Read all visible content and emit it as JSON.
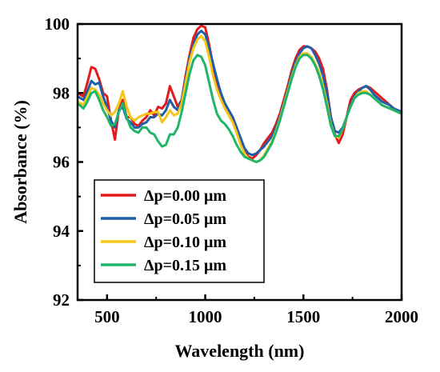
{
  "chart_data": {
    "type": "line",
    "xlabel": "Wavelength (nm)",
    "ylabel": "Absorbance (%)",
    "xlim": [
      350,
      2000
    ],
    "ylim": [
      92,
      100
    ],
    "xticks": [
      500,
      1000,
      1500,
      2000
    ],
    "yticks": [
      92,
      94,
      96,
      98,
      100
    ],
    "grid": false,
    "legend_position": "lower-left",
    "series": [
      {
        "name": "Δp=0.00 μm",
        "color": "#e41a1c",
        "x": [
          350,
          380,
          400,
          420,
          440,
          460,
          480,
          500,
          520,
          540,
          560,
          580,
          600,
          620,
          640,
          660,
          680,
          700,
          720,
          740,
          760,
          780,
          800,
          820,
          840,
          860,
          880,
          900,
          920,
          940,
          960,
          980,
          1000,
          1020,
          1040,
          1060,
          1080,
          1100,
          1120,
          1140,
          1160,
          1180,
          1200,
          1220,
          1240,
          1260,
          1280,
          1300,
          1320,
          1340,
          1360,
          1380,
          1400,
          1420,
          1440,
          1460,
          1480,
          1500,
          1520,
          1540,
          1560,
          1580,
          1600,
          1620,
          1640,
          1660,
          1680,
          1700,
          1720,
          1740,
          1760,
          1780,
          1800,
          1820,
          1840,
          1860,
          1880,
          1900,
          1920,
          1940,
          1960,
          1980,
          2000
        ],
        "values": [
          98.0,
          97.9,
          98.3,
          98.75,
          98.7,
          98.4,
          98.0,
          97.9,
          97.2,
          96.65,
          97.5,
          97.8,
          97.3,
          97.3,
          97.1,
          97.05,
          97.2,
          97.3,
          97.5,
          97.35,
          97.6,
          97.55,
          97.7,
          98.2,
          97.9,
          97.6,
          97.8,
          98.5,
          99.1,
          99.6,
          99.85,
          99.95,
          99.9,
          99.4,
          98.8,
          98.3,
          97.95,
          97.7,
          97.5,
          97.3,
          97.0,
          96.6,
          96.3,
          96.15,
          96.1,
          96.2,
          96.35,
          96.55,
          96.7,
          96.85,
          97.1,
          97.4,
          97.8,
          98.2,
          98.65,
          99.0,
          99.25,
          99.35,
          99.35,
          99.3,
          99.2,
          99.0,
          98.7,
          98.1,
          97.3,
          96.8,
          96.55,
          96.8,
          97.3,
          97.8,
          98.0,
          98.1,
          98.15,
          98.2,
          98.15,
          98.05,
          97.95,
          97.85,
          97.75,
          97.65,
          97.55,
          97.5,
          97.45
        ]
      },
      {
        "name": "Δp=0.05 μm",
        "color": "#1f5ea8",
        "x": [
          350,
          380,
          400,
          420,
          440,
          460,
          480,
          500,
          520,
          540,
          560,
          580,
          600,
          620,
          640,
          660,
          680,
          700,
          720,
          740,
          760,
          780,
          800,
          820,
          840,
          860,
          880,
          900,
          920,
          940,
          960,
          980,
          1000,
          1020,
          1040,
          1060,
          1080,
          1100,
          1120,
          1140,
          1160,
          1180,
          1200,
          1220,
          1240,
          1260,
          1280,
          1300,
          1320,
          1340,
          1360,
          1380,
          1400,
          1420,
          1440,
          1460,
          1480,
          1500,
          1520,
          1540,
          1560,
          1580,
          1600,
          1620,
          1640,
          1660,
          1680,
          1700,
          1720,
          1740,
          1760,
          1780,
          1800,
          1820,
          1840,
          1860,
          1880,
          1900,
          1920,
          1940,
          1960,
          1980,
          2000
        ],
        "values": [
          97.9,
          97.8,
          98.05,
          98.35,
          98.25,
          98.3,
          97.9,
          97.6,
          97.2,
          97.0,
          97.5,
          97.6,
          97.25,
          97.15,
          97.0,
          97.0,
          97.1,
          97.15,
          97.3,
          97.3,
          97.4,
          97.35,
          97.5,
          97.8,
          97.6,
          97.5,
          97.8,
          98.4,
          99.0,
          99.4,
          99.7,
          99.8,
          99.7,
          99.3,
          98.85,
          98.4,
          98.0,
          97.7,
          97.5,
          97.3,
          97.0,
          96.7,
          96.4,
          96.25,
          96.2,
          96.25,
          96.35,
          96.45,
          96.6,
          96.75,
          97.0,
          97.3,
          97.7,
          98.1,
          98.55,
          98.9,
          99.15,
          99.3,
          99.35,
          99.3,
          99.1,
          98.85,
          98.5,
          98.0,
          97.3,
          96.9,
          96.85,
          97.0,
          97.3,
          97.65,
          97.9,
          98.05,
          98.15,
          98.2,
          98.1,
          97.95,
          97.85,
          97.75,
          97.7,
          97.65,
          97.55,
          97.5,
          97.45
        ]
      },
      {
        "name": "Δp=0.10 μm",
        "color": "#f5c518",
        "x": [
          350,
          380,
          400,
          420,
          440,
          460,
          480,
          500,
          520,
          540,
          560,
          580,
          600,
          620,
          640,
          660,
          680,
          700,
          720,
          740,
          760,
          780,
          800,
          820,
          840,
          860,
          880,
          900,
          920,
          940,
          960,
          980,
          1000,
          1020,
          1040,
          1060,
          1080,
          1100,
          1120,
          1140,
          1160,
          1180,
          1200,
          1220,
          1240,
          1260,
          1280,
          1300,
          1320,
          1340,
          1360,
          1380,
          1400,
          1420,
          1440,
          1460,
          1480,
          1500,
          1520,
          1540,
          1560,
          1580,
          1600,
          1620,
          1640,
          1660,
          1680,
          1700,
          1720,
          1740,
          1760,
          1780,
          1800,
          1820,
          1840,
          1860,
          1880,
          1900,
          1920,
          1940,
          1960,
          1980,
          2000
        ],
        "values": [
          97.75,
          97.65,
          97.9,
          98.15,
          98.1,
          97.95,
          97.7,
          97.5,
          97.35,
          97.45,
          97.7,
          98.05,
          97.6,
          97.3,
          97.2,
          97.3,
          97.35,
          97.4,
          97.4,
          97.45,
          97.45,
          97.15,
          97.3,
          97.5,
          97.35,
          97.4,
          97.7,
          98.3,
          98.9,
          99.3,
          99.55,
          99.65,
          99.5,
          99.05,
          98.5,
          98.1,
          97.8,
          97.55,
          97.35,
          97.15,
          96.85,
          96.5,
          96.25,
          96.1,
          96.05,
          96.0,
          96.05,
          96.2,
          96.4,
          96.6,
          96.9,
          97.25,
          97.65,
          98.05,
          98.45,
          98.8,
          99.05,
          99.15,
          99.15,
          99.05,
          98.85,
          98.6,
          98.2,
          97.7,
          97.1,
          96.75,
          96.7,
          96.95,
          97.3,
          97.6,
          97.85,
          98.0,
          98.05,
          98.05,
          97.95,
          97.85,
          97.75,
          97.65,
          97.6,
          97.55,
          97.5,
          97.45,
          97.4
        ]
      },
      {
        "name": "Δp=0.15 μm",
        "color": "#1fb56b",
        "x": [
          350,
          380,
          400,
          420,
          440,
          460,
          480,
          500,
          520,
          540,
          560,
          580,
          600,
          620,
          640,
          660,
          680,
          700,
          720,
          740,
          760,
          780,
          800,
          820,
          840,
          860,
          880,
          900,
          920,
          940,
          960,
          980,
          1000,
          1020,
          1040,
          1060,
          1080,
          1100,
          1120,
          1140,
          1160,
          1180,
          1200,
          1220,
          1240,
          1260,
          1280,
          1300,
          1320,
          1340,
          1360,
          1380,
          1400,
          1420,
          1440,
          1460,
          1480,
          1500,
          1520,
          1540,
          1560,
          1580,
          1600,
          1620,
          1640,
          1660,
          1680,
          1700,
          1720,
          1740,
          1760,
          1780,
          1800,
          1820,
          1840,
          1860,
          1880,
          1900,
          1920,
          1940,
          1960,
          1980,
          2000
        ],
        "values": [
          97.7,
          97.55,
          97.75,
          98.0,
          98.05,
          97.8,
          97.5,
          97.3,
          97.05,
          97.1,
          97.45,
          97.7,
          97.3,
          97.0,
          96.9,
          96.85,
          97.0,
          97.0,
          96.85,
          96.8,
          96.6,
          96.45,
          96.5,
          96.8,
          96.8,
          97.0,
          97.45,
          98.0,
          98.55,
          98.95,
          99.1,
          99.05,
          98.8,
          98.3,
          97.8,
          97.4,
          97.2,
          97.1,
          96.95,
          96.75,
          96.5,
          96.3,
          96.15,
          96.1,
          96.05,
          96.0,
          96.05,
          96.15,
          96.35,
          96.55,
          96.85,
          97.2,
          97.6,
          98.0,
          98.4,
          98.75,
          99.0,
          99.1,
          99.1,
          99.0,
          98.8,
          98.5,
          98.1,
          97.6,
          97.05,
          96.75,
          96.75,
          96.95,
          97.3,
          97.6,
          97.85,
          97.95,
          98.0,
          98.0,
          97.95,
          97.85,
          97.75,
          97.65,
          97.6,
          97.55,
          97.5,
          97.45,
          97.4
        ]
      }
    ]
  }
}
